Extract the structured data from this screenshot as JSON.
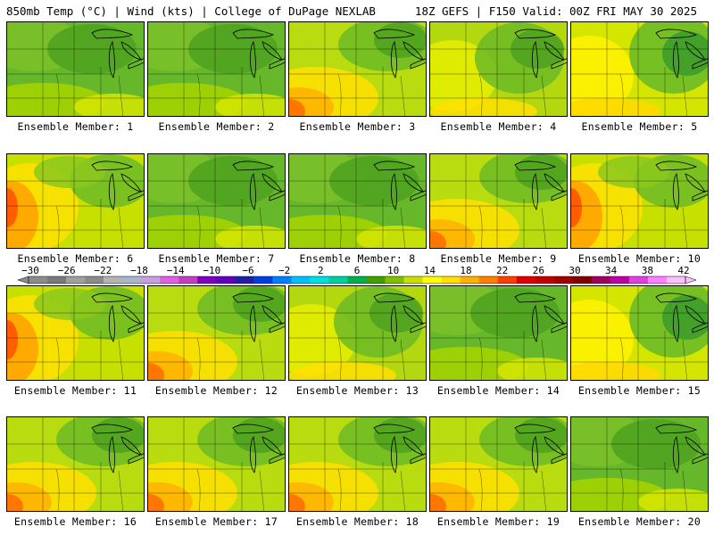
{
  "header": {
    "left": "850mb Temp (°C) | Wind (kts) | College of DuPage NEXLAB",
    "right": "18Z GEFS | F150 Valid: 00Z FRI MAY 30 2025"
  },
  "colorbar": {
    "labels": [
      "−30",
      "−26",
      "−22",
      "−18",
      "−14",
      "−10",
      "−6",
      "−2",
      "2",
      "6",
      "10",
      "14",
      "18",
      "22",
      "26",
      "30",
      "34",
      "38",
      "42"
    ],
    "colors": [
      "#8c8c8c",
      "#7a7a7a",
      "#a0a0a0",
      "#8c8c8c",
      "#b4b4b4",
      "#a8b8c8",
      "#c8a0e0",
      "#e060e0",
      "#c040c0",
      "#8000c0",
      "#6000c0",
      "#2020a0",
      "#0040e0",
      "#0080ff",
      "#00c0ff",
      "#00e0e0",
      "#00d0a0",
      "#00b050",
      "#40a000",
      "#80c000",
      "#c8e000",
      "#ffff00",
      "#ffe000",
      "#ffb000",
      "#ff8000",
      "#ff4000",
      "#e00000",
      "#c00000",
      "#a00000",
      "#800000",
      "#a00060",
      "#c000a0",
      "#e040e0",
      "#ff80ff",
      "#ffc0ff"
    ]
  },
  "members": [
    {
      "label": "Ensemble Member: 1",
      "tone": "green"
    },
    {
      "label": "Ensemble Member: 2",
      "tone": "green"
    },
    {
      "label": "Ensemble Member: 3",
      "tone": "warmsw"
    },
    {
      "label": "Ensemble Member: 4",
      "tone": "mixed"
    },
    {
      "label": "Ensemble Member: 5",
      "tone": "coolne"
    },
    {
      "label": "Ensemble Member: 6",
      "tone": "warmw"
    },
    {
      "label": "Ensemble Member: 7",
      "tone": "green"
    },
    {
      "label": "Ensemble Member: 8",
      "tone": "green"
    },
    {
      "label": "Ensemble Member: 9",
      "tone": "warmsw"
    },
    {
      "label": "Ensemble Member: 10",
      "tone": "warmw"
    },
    {
      "label": "Ensemble Member: 11",
      "tone": "warmw"
    },
    {
      "label": "Ensemble Member: 12",
      "tone": "warmsw"
    },
    {
      "label": "Ensemble Member: 13",
      "tone": "mixed"
    },
    {
      "label": "Ensemble Member: 14",
      "tone": "green"
    },
    {
      "label": "Ensemble Member: 15",
      "tone": "coolne"
    },
    {
      "label": "Ensemble Member: 16",
      "tone": "warmsw"
    },
    {
      "label": "Ensemble Member: 17",
      "tone": "warmsw"
    },
    {
      "label": "Ensemble Member: 18",
      "tone": "warmsw"
    },
    {
      "label": "Ensemble Member: 19",
      "tone": "warmsw"
    },
    {
      "label": "Ensemble Member: 20",
      "tone": "green"
    }
  ]
}
